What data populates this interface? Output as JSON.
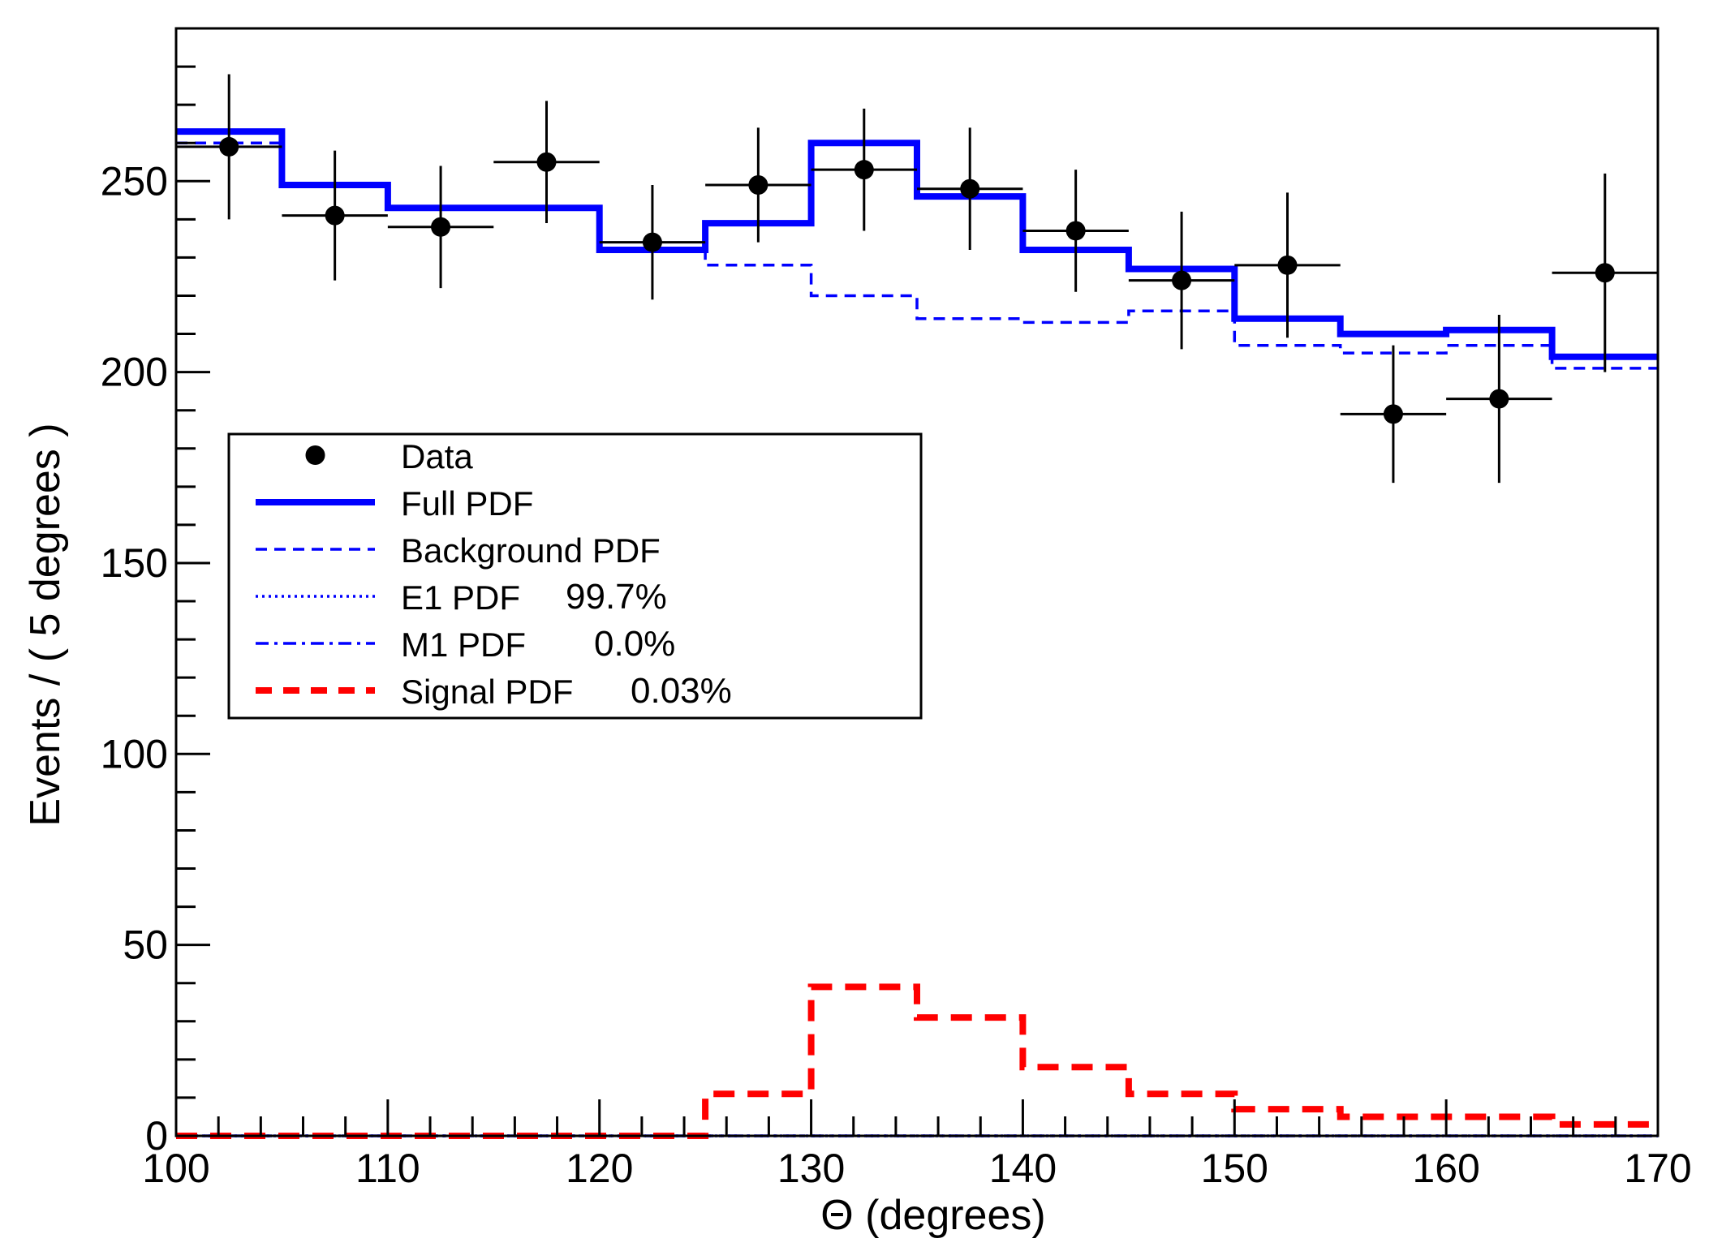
{
  "chart_data": {
    "type": "histogram",
    "title": "",
    "xlabel": "Θ (degrees)",
    "ylabel": "Events / ( 5 degrees )",
    "xlim": [
      100,
      170
    ],
    "ylim": [
      0,
      290
    ],
    "xticks": [
      100,
      110,
      120,
      130,
      140,
      150,
      160,
      170
    ],
    "yticks": [
      0,
      50,
      100,
      150,
      200,
      250
    ],
    "bin_edges": [
      100,
      105,
      110,
      115,
      120,
      125,
      130,
      135,
      140,
      145,
      150,
      155,
      160,
      165,
      170
    ],
    "data_points": [
      {
        "x": 102.5,
        "y": 259,
        "err": 19
      },
      {
        "x": 107.5,
        "y": 241,
        "err": 17
      },
      {
        "x": 112.5,
        "y": 238,
        "err": 16
      },
      {
        "x": 117.5,
        "y": 255,
        "err": 16
      },
      {
        "x": 122.5,
        "y": 234,
        "err": 15
      },
      {
        "x": 127.5,
        "y": 249,
        "err": 15
      },
      {
        "x": 132.5,
        "y": 253,
        "err": 16
      },
      {
        "x": 137.5,
        "y": 248,
        "err": 16
      },
      {
        "x": 142.5,
        "y": 237,
        "err": 16
      },
      {
        "x": 147.5,
        "y": 224,
        "err": 18
      },
      {
        "x": 152.5,
        "y": 228,
        "err": 19
      },
      {
        "x": 157.5,
        "y": 189,
        "err": 18
      },
      {
        "x": 162.5,
        "y": 193,
        "err": 22
      },
      {
        "x": 167.5,
        "y": 226,
        "err": 26
      }
    ],
    "series": [
      {
        "name": "Full PDF",
        "color": "#0000ff",
        "style": "solid",
        "values": [
          263,
          249,
          243,
          243,
          232,
          239,
          260,
          246,
          232,
          227,
          214,
          210,
          211,
          204
        ]
      },
      {
        "name": "Background PDF",
        "color": "#0000ff",
        "style": "dashed",
        "values": [
          260,
          249,
          243,
          243,
          232,
          228,
          220,
          214,
          213,
          216,
          207,
          205,
          207,
          201
        ]
      },
      {
        "name": "E1 PDF",
        "color": "#0000ff",
        "style": "dotted",
        "values": [
          0,
          0,
          0,
          0,
          0,
          0,
          0,
          0,
          0,
          0,
          0,
          0,
          0,
          0
        ]
      },
      {
        "name": "M1 PDF",
        "color": "#0000ff",
        "style": "dashdot",
        "values": [
          0,
          0,
          0,
          0,
          0,
          0,
          0,
          0,
          0,
          0,
          0,
          0,
          0,
          0
        ]
      },
      {
        "name": "Signal PDF",
        "color": "#ff0000",
        "style": "dashed",
        "values": [
          0,
          0,
          0,
          0,
          0,
          11,
          39,
          31,
          18,
          11,
          7,
          5,
          5,
          3
        ]
      }
    ],
    "legend": {
      "position": "middle-left",
      "entries": [
        {
          "label": "Data",
          "value": ""
        },
        {
          "label": "Full PDF",
          "value": ""
        },
        {
          "label": "Background PDF",
          "value": ""
        },
        {
          "label": "E1 PDF",
          "value": "99.7%"
        },
        {
          "label": "M1 PDF",
          "value": "0.0%"
        },
        {
          "label": "Signal PDF",
          "value": "0.03%"
        }
      ]
    }
  }
}
